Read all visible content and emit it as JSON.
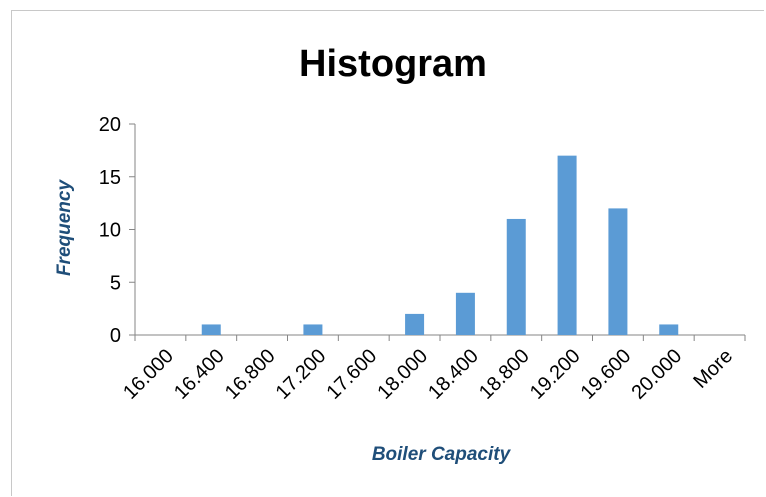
{
  "chart_data": {
    "type": "bar",
    "title": "Histogram",
    "xlabel": "Boiler Capacity",
    "ylabel": "Frequency",
    "categories": [
      "16.000",
      "16.400",
      "16.800",
      "17.200",
      "17.600",
      "18.000",
      "18.400",
      "18.800",
      "19.200",
      "19.600",
      "20.000",
      "More"
    ],
    "values": [
      0,
      1,
      0,
      1,
      0,
      2,
      4,
      11,
      17,
      12,
      1,
      0
    ],
    "ylim": [
      0,
      20
    ],
    "yticks": [
      "0",
      "5",
      "10",
      "15",
      "20"
    ],
    "grid": false,
    "legend": "none",
    "bar_color": "#5b9bd5",
    "axis_color": "#868686"
  }
}
